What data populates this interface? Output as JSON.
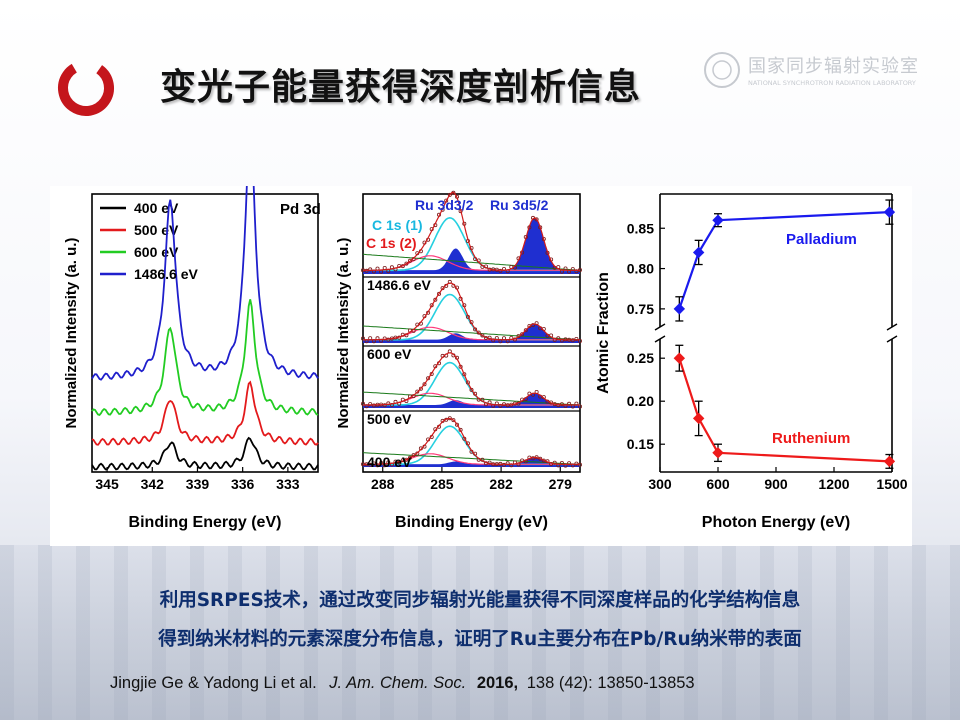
{
  "slide": {
    "title": "变光子能量获得深度剖析信息",
    "watermark": {
      "cn": "国家同步辐射实验室",
      "en": "NATIONAL SYNCHROTRON RADIATION LABORATORY"
    },
    "caption_line1": "利用SRPES技术，通过改变同步辐射光能量获得不同深度样品的化学结构信息",
    "caption_line2": "得到纳米材料的元素深度分布信息，证明了Ru主要分布在Pb/Ru纳米带的表面",
    "citation": {
      "authors": "Jingjie Ge & Yadong Li et al.",
      "journal": "J. Am. Chem. Soc.",
      "year": "2016,",
      "rest": "138 (42): 13850-13853"
    },
    "colors": {
      "caption": "#0e2e6e",
      "logo_red": "#c4161c"
    }
  },
  "chart_data": [
    {
      "type": "line",
      "panel": "Pd 3d",
      "label": "Pd 3d",
      "xlabel": "Binding Energy (eV)",
      "ylabel": "Normalized Intensity (a. u.)",
      "x_reversed": true,
      "xlim": [
        346,
        331
      ],
      "xticks": [
        345,
        342,
        339,
        336,
        333
      ],
      "peaks_eV": [
        340.8,
        335.5
      ],
      "series": [
        {
          "name": "400 eV",
          "color": "#000000",
          "offset": 0.0,
          "peak_heights": [
            0.1,
            0.12
          ]
        },
        {
          "name": "500 eV",
          "color": "#e31a1c",
          "offset": 0.1,
          "peak_heights": [
            0.18,
            0.24
          ]
        },
        {
          "name": "600 eV",
          "color": "#22cc22",
          "offset": 0.22,
          "peak_heights": [
            0.35,
            0.45
          ]
        },
        {
          "name": "1486.6 eV",
          "color": "#1f1fcc",
          "offset": 0.36,
          "peak_heights": [
            0.72,
            1.02
          ]
        }
      ]
    },
    {
      "type": "line",
      "panel": "Ru 3d / C 1s",
      "xlabel": "Binding Energy (eV)",
      "ylabel": "Normalized Intensity (a. u.)",
      "x_reversed": true,
      "xlim": [
        289,
        278
      ],
      "xticks": [
        288,
        285,
        282,
        279
      ],
      "annotations": [
        "Ru 3d3/2",
        "Ru 3d5/2",
        "C 1s (1)",
        "C 1s (2)"
      ],
      "stack_labels": [
        "1486.6 eV",
        "600 eV",
        "500 eV",
        "400 eV"
      ],
      "peaks_eV": {
        "C 1s (1)": 284.6,
        "C 1s (2)": 285.6,
        "Ru 3d3/2": 284.4,
        "Ru 3d5/2": 280.3
      }
    },
    {
      "type": "line",
      "panel": "Atomic Fraction",
      "xlabel": "Photon Energy (eV)",
      "ylabel": "Atomic Fraction",
      "xlim": [
        300,
        1500
      ],
      "xticks": [
        300,
        600,
        900,
        1200,
        1500
      ],
      "broken_y": true,
      "ylim_upper": [
        0.73,
        0.89
      ],
      "yticks_upper": [
        0.75,
        0.8,
        0.85
      ],
      "ylim_lower": [
        0.12,
        0.27
      ],
      "yticks_lower": [
        0.15,
        0.2,
        0.25
      ],
      "series": [
        {
          "name": "Palladium",
          "color": "#1a1aee",
          "x": [
            400,
            500,
            600,
            1486.6
          ],
          "y": [
            0.75,
            0.82,
            0.86,
            0.87
          ],
          "err": [
            0.015,
            0.015,
            0.008,
            0.015
          ]
        },
        {
          "name": "Ruthenium",
          "color": "#ee1a1a",
          "x": [
            400,
            500,
            600,
            1486.6
          ],
          "y": [
            0.25,
            0.18,
            0.14,
            0.13
          ],
          "err": [
            0.015,
            0.02,
            0.01,
            0.008
          ]
        }
      ]
    }
  ]
}
